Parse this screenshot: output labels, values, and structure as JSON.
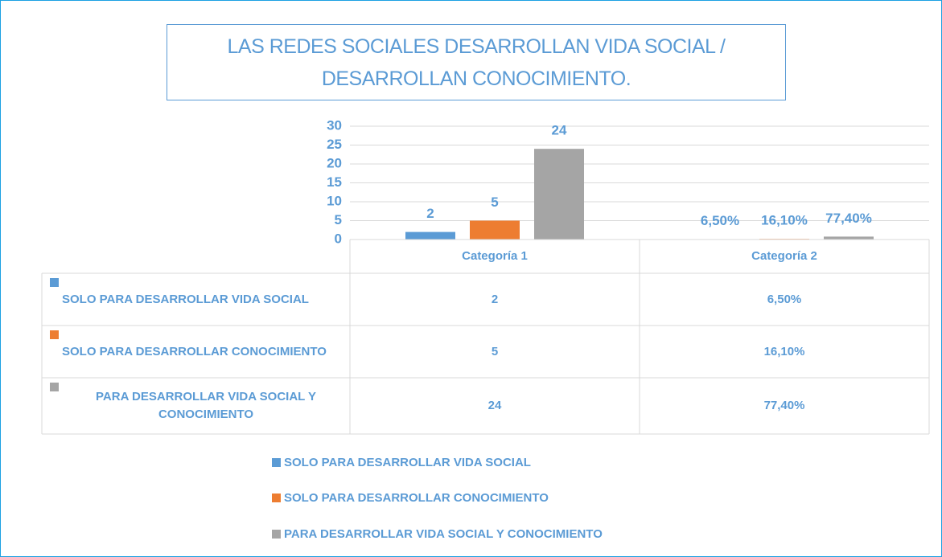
{
  "chart_data": {
    "type": "bar",
    "title": "LAS REDES SOCIALES DESARROLLAN VIDA SOCIAL / DESARROLLAN CONOCIMIENTO.",
    "categories": [
      "Categoría 1",
      "Categoría 2"
    ],
    "series": [
      {
        "name": "SOLO PARA DESARROLLAR VIDA SOCIAL",
        "color": "#5b9bd5",
        "values": [
          2,
          0.065
        ],
        "value_labels": [
          "2",
          "6,50%"
        ]
      },
      {
        "name": "SOLO PARA DESARROLLAR CONOCIMIENTO",
        "color": "#ed7d31",
        "values": [
          5,
          0.161
        ],
        "value_labels": [
          "5",
          "16,10%"
        ]
      },
      {
        "name": "PARA DESARROLLAR VIDA SOCIAL Y CONOCIMIENTO",
        "color": "#a5a5a5",
        "values": [
          24,
          0.774
        ],
        "value_labels": [
          "24",
          "77,40%"
        ]
      }
    ],
    "ylim": [
      0,
      30
    ],
    "yticks": [
      0,
      5,
      10,
      15,
      20,
      25,
      30
    ],
    "grid": true,
    "data_table": true,
    "legend": "bottom"
  }
}
